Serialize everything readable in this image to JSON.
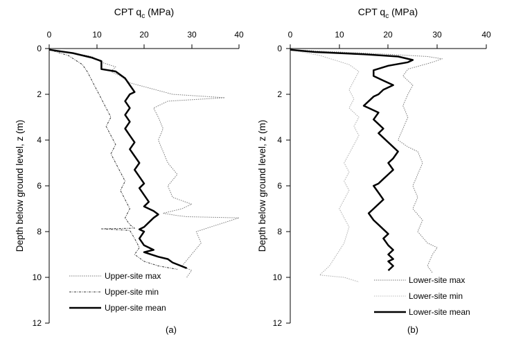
{
  "chart_data": [
    {
      "type": "line",
      "panel_label": "(a)",
      "title_main": "CPT q",
      "title_sub": "c",
      "title_unit": " (MPa)",
      "ylabel": "Depth below ground level, z (m)",
      "x_ticks": [
        "0",
        "10",
        "20",
        "30",
        "40"
      ],
      "y_ticks": [
        "0",
        "2",
        "4",
        "6",
        "8",
        "10",
        "12"
      ],
      "xlim": [
        0,
        40
      ],
      "ylim": [
        0,
        12
      ],
      "y_inverted": true,
      "x_axis_position": "top",
      "legend_position": "bottom-left",
      "series": [
        {
          "name": "Upper-site max",
          "style": "dotted-gray",
          "x": [
            0,
            5,
            9,
            11,
            14,
            13,
            15,
            17,
            26,
            37,
            25,
            22,
            23,
            24,
            23,
            24,
            25,
            27,
            25,
            26,
            30,
            28,
            24,
            27,
            29,
            40,
            31,
            32,
            30,
            28,
            30,
            29
          ],
          "y": [
            0.05,
            0.2,
            0.35,
            0.6,
            0.8,
            1.0,
            1.2,
            1.5,
            2.0,
            2.15,
            2.3,
            2.6,
            3.0,
            3.5,
            4.0,
            4.5,
            5.0,
            5.5,
            6.0,
            6.5,
            6.8,
            7.0,
            7.2,
            7.3,
            7.35,
            7.4,
            8.0,
            8.5,
            9.0,
            9.5,
            9.7,
            10.0
          ]
        },
        {
          "name": "Upper-site min",
          "style": "dashdot-dark",
          "x": [
            0,
            4,
            7,
            8,
            9,
            10,
            11,
            12,
            13,
            12,
            13,
            14,
            13,
            14,
            15,
            16,
            15,
            16,
            17,
            16,
            17,
            18,
            11,
            17,
            18,
            19,
            18,
            20,
            23,
            27
          ],
          "y": [
            0.05,
            0.3,
            0.7,
            1.0,
            1.4,
            1.8,
            2.2,
            2.6,
            3.0,
            3.4,
            3.8,
            4.2,
            4.6,
            5.0,
            5.4,
            5.8,
            6.2,
            6.6,
            7.0,
            7.4,
            7.7,
            7.85,
            7.88,
            7.95,
            8.3,
            8.7,
            9.0,
            9.3,
            9.5,
            9.65
          ]
        },
        {
          "name": "Upper-site mean",
          "style": "solid-thick",
          "x": [
            0,
            5,
            9,
            11,
            11,
            14,
            16,
            17,
            18,
            17,
            16,
            17,
            16,
            17,
            16,
            17,
            18,
            17,
            18,
            19,
            18,
            19,
            20,
            19,
            20,
            21,
            20,
            21,
            22,
            23,
            22,
            21,
            20,
            19,
            20,
            19,
            20,
            22,
            20,
            23,
            25,
            26,
            29
          ],
          "y": [
            0.05,
            0.2,
            0.4,
            0.55,
            0.9,
            1.0,
            1.3,
            1.6,
            1.9,
            2.0,
            2.3,
            2.6,
            2.9,
            3.2,
            3.5,
            3.8,
            4.1,
            4.4,
            4.7,
            5.0,
            5.3,
            5.6,
            5.9,
            6.1,
            6.4,
            6.7,
            6.9,
            7.0,
            7.1,
            7.25,
            7.4,
            7.6,
            7.8,
            7.9,
            8.0,
            8.3,
            8.6,
            8.8,
            8.9,
            9.1,
            9.2,
            9.35,
            9.6
          ]
        }
      ],
      "legend": [
        "Upper-site max",
        "Upper-site min",
        "Upper-site mean"
      ]
    },
    {
      "type": "line",
      "panel_label": "(b)",
      "title_main": "CPT q",
      "title_sub": "c",
      "title_unit": " (MPa)",
      "ylabel": "Depth below ground level, z (m)",
      "x_ticks": [
        "0",
        "10",
        "20",
        "30",
        "40"
      ],
      "y_ticks": [
        "0",
        "2",
        "4",
        "6",
        "8",
        "10",
        "12"
      ],
      "xlim": [
        0,
        40
      ],
      "ylim": [
        0,
        12
      ],
      "y_inverted": true,
      "x_axis_position": "top",
      "legend_position": "bottom-right",
      "series": [
        {
          "name": "Lower-site max",
          "style": "dotted-gray",
          "x": [
            0,
            10,
            20,
            28,
            31,
            29,
            24,
            23,
            25,
            24,
            23,
            24,
            23,
            22,
            24,
            26,
            27,
            26,
            25,
            26,
            25,
            27,
            26,
            28,
            30,
            29,
            28,
            29
          ],
          "y": [
            0.05,
            0.15,
            0.25,
            0.35,
            0.45,
            0.6,
            0.9,
            1.2,
            1.6,
            2.0,
            2.5,
            3.0,
            3.5,
            4.0,
            4.3,
            4.5,
            5.0,
            5.5,
            6.0,
            6.5,
            7.0,
            7.5,
            8.0,
            8.5,
            8.7,
            9.0,
            9.5,
            9.8
          ]
        },
        {
          "name": "Lower-site min",
          "style": "dotted-light",
          "x": [
            0,
            6,
            12,
            14,
            13,
            12,
            13,
            12,
            14,
            13,
            14,
            13,
            12,
            11,
            12,
            11,
            12,
            11,
            10,
            11,
            12,
            11,
            8,
            6,
            11,
            14
          ],
          "y": [
            0.05,
            0.3,
            0.7,
            1.0,
            1.4,
            1.8,
            2.2,
            2.6,
            3.0,
            3.4,
            3.8,
            4.2,
            4.6,
            5.0,
            5.4,
            5.8,
            6.2,
            6.6,
            7.0,
            7.4,
            7.8,
            8.5,
            9.5,
            9.9,
            10.0,
            10.2
          ]
        },
        {
          "name": "Lower-site mean",
          "style": "solid-thick",
          "x": [
            0,
            5,
            15,
            22,
            25,
            24,
            20,
            17,
            17,
            19,
            21,
            19,
            18,
            17,
            16,
            15,
            16,
            18,
            17,
            18,
            19,
            18,
            19,
            20,
            21,
            22,
            21,
            20,
            21,
            20,
            19,
            18,
            17,
            18,
            19,
            17,
            16,
            17,
            18,
            19,
            20,
            19,
            20,
            21,
            20,
            21,
            20,
            21,
            20
          ],
          "y": [
            0.05,
            0.15,
            0.25,
            0.35,
            0.5,
            0.6,
            0.75,
            0.95,
            1.2,
            1.4,
            1.6,
            1.8,
            2.0,
            2.1,
            2.3,
            2.5,
            2.6,
            2.8,
            3.1,
            3.3,
            3.5,
            3.7,
            3.9,
            4.1,
            4.3,
            4.5,
            4.8,
            5.0,
            5.3,
            5.5,
            5.7,
            5.9,
            6.0,
            6.3,
            6.6,
            7.0,
            7.2,
            7.5,
            7.7,
            7.9,
            8.1,
            8.3,
            8.6,
            8.8,
            9.0,
            9.2,
            9.3,
            9.5,
            9.7
          ]
        }
      ],
      "legend": [
        "Lower-site max",
        "Lower-site min",
        "Lower-site mean"
      ]
    }
  ]
}
